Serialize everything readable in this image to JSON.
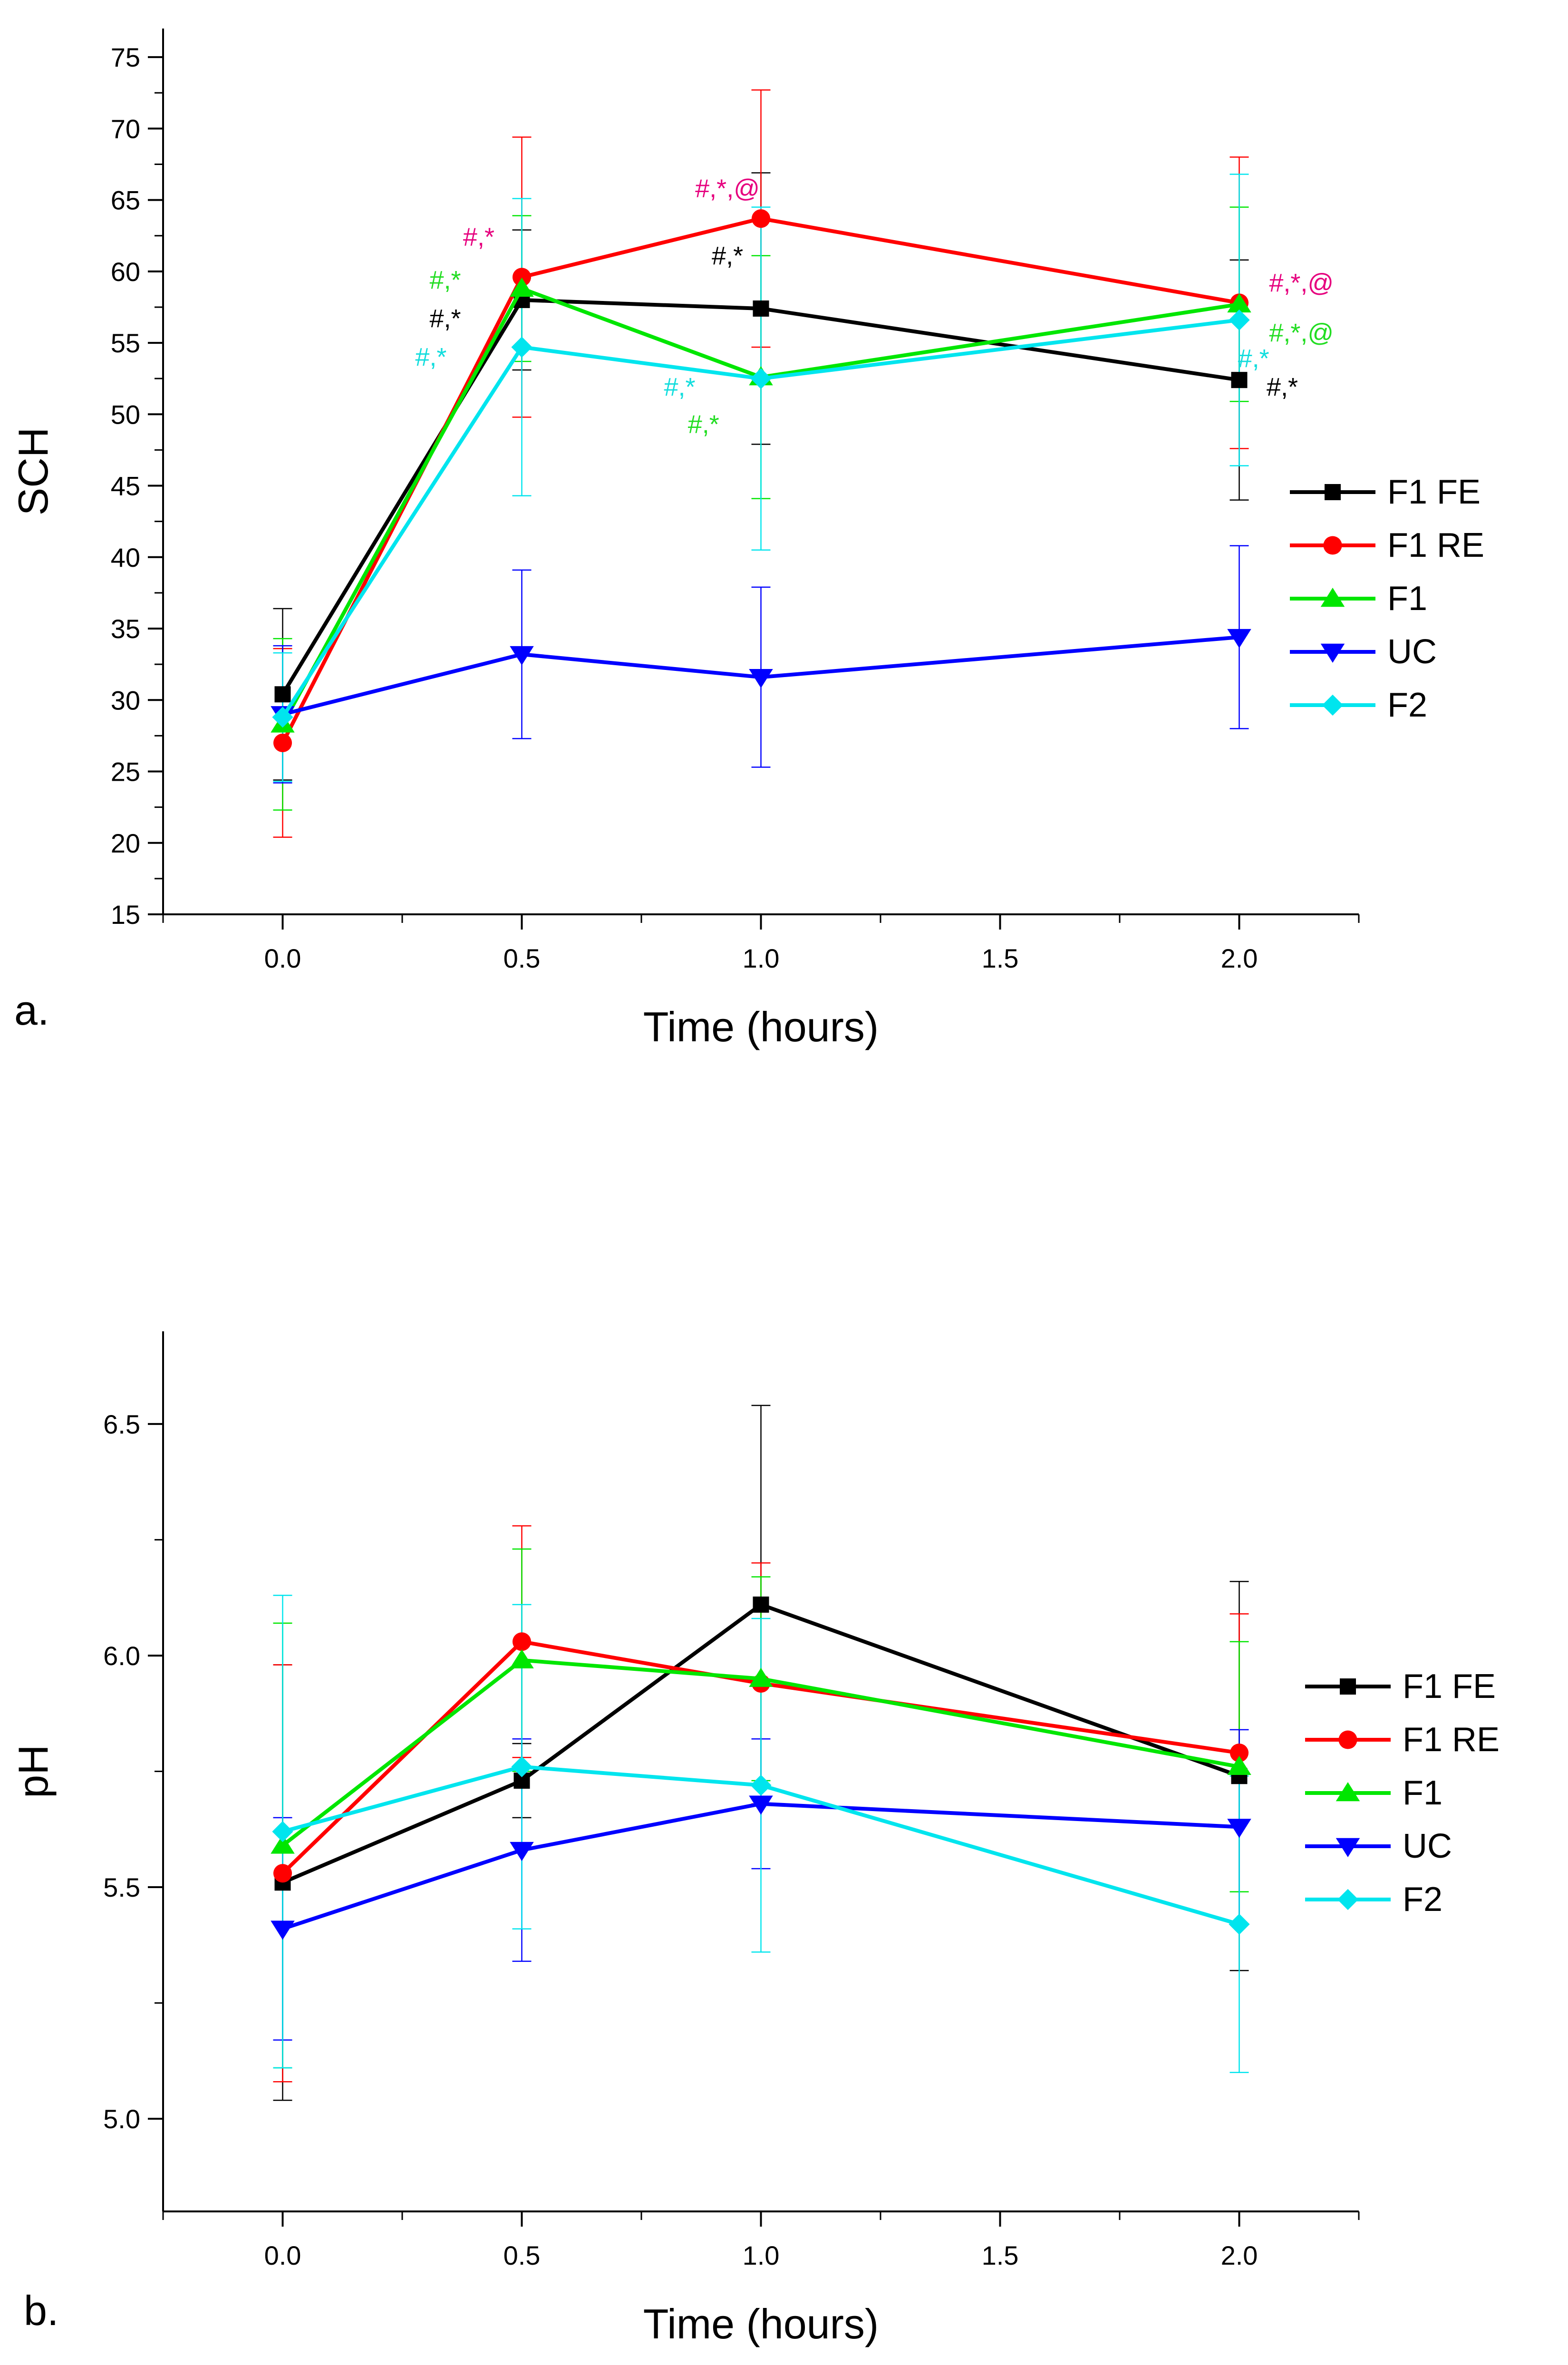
{
  "chart_data": [
    {
      "type": "line",
      "panel_label": "a.",
      "title": "",
      "xlabel": "Time (hours)",
      "ylabel": "SCH",
      "xlim": [
        -0.25,
        2.25
      ],
      "ylim": [
        15,
        77
      ],
      "x_ticks": [
        0.0,
        0.5,
        1.0,
        1.5,
        2.0
      ],
      "x_tick_labels": [
        "0.0",
        "0.5",
        "1.0",
        "1.5",
        "2.0"
      ],
      "y_ticks": [
        15,
        20,
        25,
        30,
        35,
        40,
        45,
        50,
        55,
        60,
        65,
        70,
        75
      ],
      "y_tick_labels": [
        "15",
        "20",
        "25",
        "30",
        "35",
        "40",
        "45",
        "50",
        "55",
        "60",
        "65",
        "70",
        "75"
      ],
      "legend_position": "right",
      "x": [
        0.0,
        0.5,
        1.0,
        2.0
      ],
      "series": [
        {
          "name": "F1 FE",
          "color": "#000000",
          "marker": "square",
          "values": [
            30.4,
            58.0,
            57.4,
            52.4
          ],
          "errors": [
            6.0,
            4.9,
            9.5,
            8.4
          ]
        },
        {
          "name": "F1 RE",
          "color": "#ff0000",
          "marker": "circle",
          "values": [
            27.0,
            59.6,
            63.7,
            57.8
          ],
          "errors": [
            6.6,
            9.8,
            9.0,
            10.2
          ]
        },
        {
          "name": "F1",
          "color": "#00e600",
          "marker": "triangle-up",
          "values": [
            28.3,
            58.8,
            52.6,
            57.7
          ],
          "errors": [
            6.0,
            5.1,
            8.5,
            6.8
          ]
        },
        {
          "name": "UC",
          "color": "#0000ff",
          "marker": "triangle-down",
          "values": [
            29.0,
            33.2,
            31.6,
            34.4
          ],
          "errors": [
            4.8,
            5.9,
            6.3,
            6.4
          ]
        },
        {
          "name": "F2",
          "color": "#00e5ee",
          "marker": "diamond",
          "values": [
            28.8,
            54.7,
            52.5,
            56.6
          ],
          "errors": [
            4.5,
            10.4,
            12.0,
            10.2
          ]
        }
      ],
      "annotations": [
        {
          "text": "#,*",
          "color": "#e6007e",
          "x": 0.41,
          "y": 61.8
        },
        {
          "text": "#,*",
          "color": "#22dd22",
          "x": 0.34,
          "y": 58.8
        },
        {
          "text": "#,*",
          "color": "#000000",
          "x": 0.34,
          "y": 56.1
        },
        {
          "text": "#,*",
          "color": "#11dddd",
          "x": 0.31,
          "y": 53.4
        },
        {
          "text": "#,*,@",
          "color": "#e6007e",
          "x": 0.93,
          "y": 65.2
        },
        {
          "text": "#,*",
          "color": "#000000",
          "x": 0.93,
          "y": 60.5
        },
        {
          "text": "#,*",
          "color": "#11dddd",
          "x": 0.83,
          "y": 51.3
        },
        {
          "text": "#,*",
          "color": "#22dd22",
          "x": 0.88,
          "y": 48.7
        },
        {
          "text": "#,*,@",
          "color": "#e6007e",
          "x": 2.13,
          "y": 58.6
        },
        {
          "text": "#,*,@",
          "color": "#22dd22",
          "x": 2.13,
          "y": 55.1
        },
        {
          "text": "#,*",
          "color": "#11dddd",
          "x": 2.03,
          "y": 53.3
        },
        {
          "text": "#,*",
          "color": "#000000",
          "x": 2.09,
          "y": 51.3
        }
      ]
    },
    {
      "type": "line",
      "panel_label": "b.",
      "title": "",
      "xlabel": "Time (hours)",
      "ylabel": "pH",
      "xlim": [
        -0.25,
        2.25
      ],
      "ylim": [
        4.8,
        6.7
      ],
      "x_ticks": [
        0.0,
        0.5,
        1.0,
        1.5,
        2.0
      ],
      "x_tick_labels": [
        "0.0",
        "0.5",
        "1.0",
        "1.5",
        "2.0"
      ],
      "y_ticks": [
        5.0,
        5.5,
        6.0,
        6.5
      ],
      "y_tick_labels": [
        "5.0",
        "5.5",
        "6.0",
        "6.5"
      ],
      "legend_position": "right",
      "x": [
        0.0,
        0.5,
        1.0,
        2.0
      ],
      "series": [
        {
          "name": "F1 FE",
          "color": "#000000",
          "marker": "square",
          "values": [
            5.51,
            5.73,
            6.11,
            5.74
          ],
          "errors": [
            0.47,
            0.08,
            0.43,
            0.42
          ]
        },
        {
          "name": "F1 RE",
          "color": "#ff0000",
          "marker": "circle",
          "values": [
            5.53,
            6.03,
            5.94,
            5.79
          ],
          "errors": [
            0.45,
            0.25,
            0.26,
            0.3
          ]
        },
        {
          "name": "F1",
          "color": "#00e600",
          "marker": "triangle-up",
          "values": [
            5.59,
            5.99,
            5.95,
            5.76
          ],
          "errors": [
            0.48,
            0.24,
            0.22,
            0.27
          ]
        },
        {
          "name": "UC",
          "color": "#0000ff",
          "marker": "triangle-down",
          "values": [
            5.41,
            5.58,
            5.68,
            5.63
          ],
          "errors": [
            0.24,
            0.24,
            0.14,
            0.21
          ]
        },
        {
          "name": "F2",
          "color": "#00e5ee",
          "marker": "diamond",
          "values": [
            5.62,
            5.76,
            5.72,
            5.42
          ],
          "errors": [
            0.51,
            0.35,
            0.36,
            0.32
          ]
        }
      ],
      "annotations": []
    }
  ]
}
